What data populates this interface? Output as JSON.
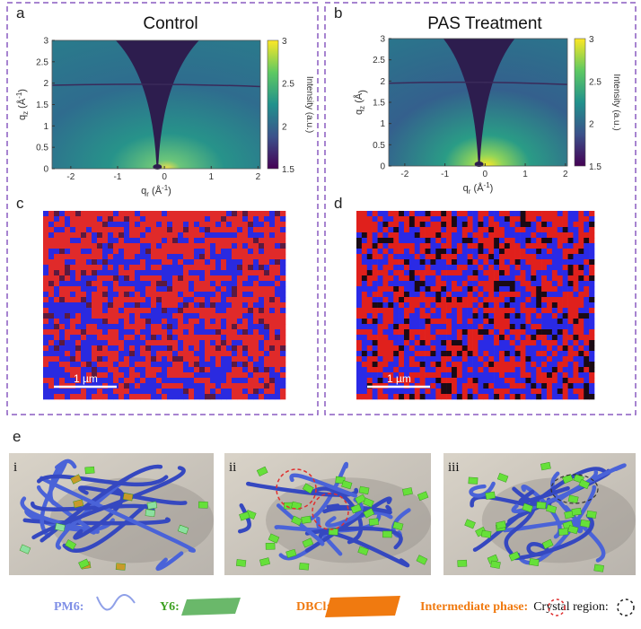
{
  "panels": [
    {
      "label": "a",
      "title": "Control",
      "y_label": {
        "base": "q",
        "sub": "z",
        "unit": " (Å",
        "sup": "-1",
        "end": ")"
      },
      "x_label": {
        "base": "q",
        "sub": "r",
        "unit": " (Å",
        "sup": "-1",
        "end": ")"
      },
      "x_ticks": [
        "-2",
        "-1",
        "0",
        "1",
        "2"
      ],
      "y_ticks": [
        "0",
        "0.5",
        "1",
        "1.5",
        "2",
        "2.5",
        "3"
      ],
      "colorbar_ticks": [
        "3",
        "2.5",
        "2",
        "1.5"
      ],
      "colorbar_label": "Intensity (a.u.)"
    },
    {
      "label": "b",
      "title": "PAS Treatment",
      "y_label": {
        "base": "q",
        "sub": "z",
        "unit": " (Å",
        "end": ")"
      },
      "x_label": {
        "base": "q",
        "sub": "r",
        "unit": " (Å",
        "sup": "-1",
        "end": ")"
      },
      "x_ticks": [
        "-2",
        "-1",
        "0",
        "1",
        "2"
      ],
      "y_ticks": [
        "0",
        "0.5",
        "1",
        "1.5",
        "2",
        "2.5",
        "3"
      ],
      "colorbar_ticks": [
        "3",
        "2.5",
        "2",
        "1.5"
      ],
      "colorbar_label": "Intensity (a.u.)"
    }
  ],
  "maps": [
    {
      "label": "c",
      "scale_bar": "1 µm"
    },
    {
      "label": "d",
      "scale_bar": "1 µm"
    }
  ],
  "schematic": {
    "label": "e",
    "parts": [
      "i",
      "ii",
      "iii"
    ],
    "legend": [
      "PM6:",
      "Y6:",
      "DBCl:",
      "Intermediate phase:",
      "Crystal region:"
    ]
  }
}
